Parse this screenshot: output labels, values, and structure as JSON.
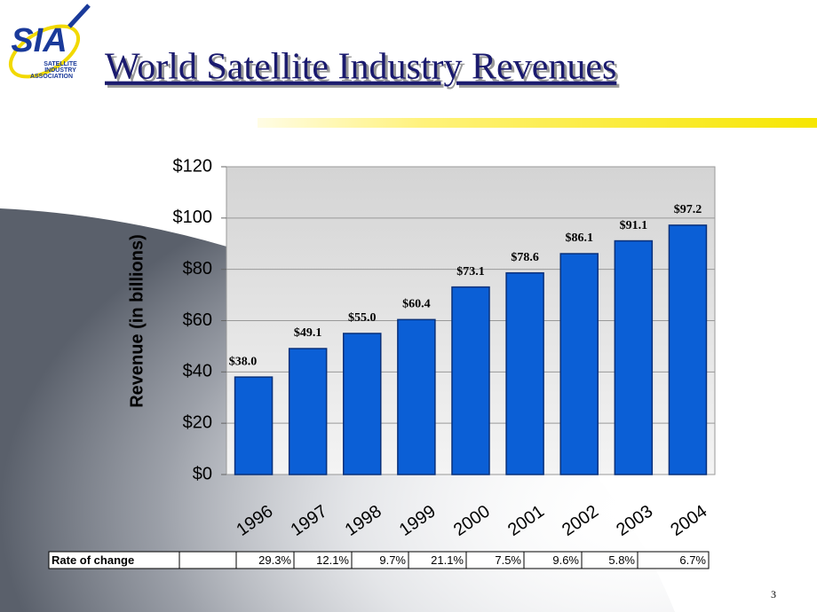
{
  "logo": {
    "mark": "SIA",
    "lines": [
      "SATELLITE",
      "INDUSTRY",
      "ASSOCIATION"
    ]
  },
  "page_number": "3",
  "chart_data": {
    "type": "bar",
    "title": "World Satellite Industry Revenues",
    "y_label": "Revenue (in billions)",
    "categories": [
      "1996",
      "1997",
      "1998",
      "1999",
      "2000",
      "2001",
      "2002",
      "2003",
      "2004"
    ],
    "values": [
      38.0,
      49.1,
      55.0,
      60.4,
      73.1,
      78.6,
      86.1,
      91.1,
      97.2
    ],
    "value_labels": [
      "$38.0",
      "$49.1",
      "$55.0",
      "$60.4",
      "$73.1",
      "$78.6",
      "$86.1",
      "$91.1",
      "$97.2"
    ],
    "color": "#0b5fd6",
    "ylim": [
      0,
      120
    ],
    "yticks": [
      {
        "value": 0,
        "label": "$0"
      },
      {
        "value": 20,
        "label": "$20"
      },
      {
        "value": 40,
        "label": "$40"
      },
      {
        "value": 60,
        "label": "$60"
      },
      {
        "value": 80,
        "label": "$80"
      },
      {
        "value": 100,
        "label": "$100"
      },
      {
        "value": 120,
        "label": "$120"
      }
    ],
    "grid": true
  },
  "rate_table": {
    "label": "Rate of change",
    "cells": [
      "29.3%",
      "12.1%",
      "9.7%",
      "21.1%",
      "7.5%",
      "9.6%",
      "5.8%",
      "6.7%"
    ]
  }
}
